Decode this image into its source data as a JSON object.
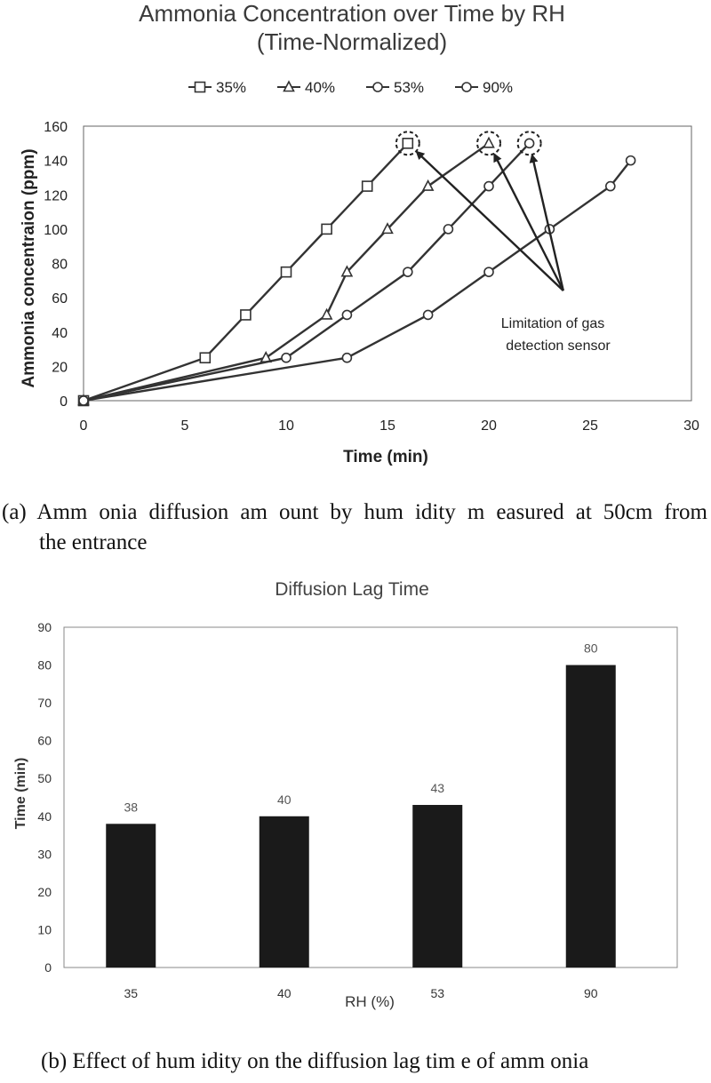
{
  "chart_data": [
    {
      "type": "line",
      "title": "Ammonia Concentration over Time by RH",
      "subtitle": "(Time-Normalized)",
      "xlabel": "Time (min)",
      "ylabel": "Ammonia concentraion (ppm)",
      "xlim": [
        0,
        30
      ],
      "ylim": [
        0,
        160
      ],
      "xticks": [
        0,
        5,
        10,
        15,
        20,
        25,
        30
      ],
      "yticks": [
        0,
        20,
        40,
        60,
        80,
        100,
        120,
        140,
        160
      ],
      "grid": false,
      "legend_position": "top",
      "series": [
        {
          "name": "35%",
          "marker": "square",
          "x": [
            0,
            6,
            8,
            10,
            12,
            14,
            16
          ],
          "y": [
            0,
            25,
            50,
            75,
            100,
            125,
            150
          ]
        },
        {
          "name": "40%",
          "marker": "triangle",
          "x": [
            0,
            9,
            12,
            13,
            15,
            17,
            20
          ],
          "y": [
            0,
            25,
            50,
            75,
            100,
            125,
            150
          ]
        },
        {
          "name": "53%",
          "marker": "circle",
          "x": [
            0,
            10,
            13,
            16,
            18,
            20,
            22
          ],
          "y": [
            0,
            25,
            50,
            75,
            100,
            125,
            150
          ]
        },
        {
          "name": "90%",
          "marker": "circle",
          "x": [
            0,
            13,
            17,
            20,
            23,
            26,
            27
          ],
          "y": [
            0,
            25,
            50,
            75,
            100,
            125,
            140
          ]
        }
      ],
      "annotation": {
        "text_line1": "Limitation of gas",
        "text_line2": "detection sensor",
        "anchor": [
          23.5,
          60
        ],
        "targets": [
          [
            16,
            150
          ],
          [
            20,
            150
          ],
          [
            22,
            150
          ]
        ]
      }
    },
    {
      "type": "bar",
      "title": "Diffusion Lag Time",
      "xlabel": "RH (%)",
      "ylabel": "Time (min)",
      "categories": [
        "35",
        "40",
        "53",
        "90"
      ],
      "values": [
        38,
        40,
        43,
        80
      ],
      "data_labels": [
        "38",
        "40",
        "43",
        "80"
      ],
      "ylim": [
        0,
        90
      ],
      "yticks": [
        0,
        10,
        20,
        30,
        40,
        50,
        60,
        70,
        80,
        90
      ],
      "grid": false,
      "bar_color": "#1a1a1a"
    }
  ],
  "captions": {
    "a_line1": "(a) Amm onia diffusion am ount by hum idity m easured at 50cm from",
    "a_line2": "the entrance",
    "b": "(b) Effect of hum idity on the diffusion lag tim e of amm onia"
  }
}
